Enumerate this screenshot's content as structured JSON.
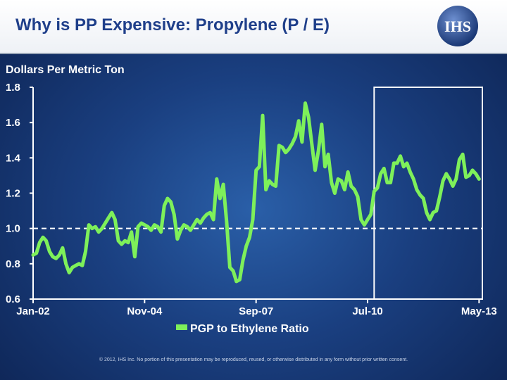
{
  "header": {
    "title": "Why is PP Expensive:  Propylene (P / E)",
    "logo_text": "IHS"
  },
  "footer": {
    "copyright": "© 2012, IHS Inc. No portion of this presentation may be reproduced, reused, or otherwise distributed in any form without prior written consent."
  },
  "colors": {
    "series": "#7ef05a",
    "axis": "#ffffff",
    "background": "#1f4d96"
  },
  "chart_data": {
    "type": "line",
    "title": "Why is PP Expensive:  Propylene (P / E)",
    "ylabel": "Dollars Per Metric Ton",
    "xlabel": "",
    "ylim": [
      0.6,
      1.8
    ],
    "yticks": [
      0.6,
      0.8,
      1.0,
      1.2,
      1.4,
      1.6,
      1.8
    ],
    "ytick_labels": [
      "0.6",
      "0.8",
      "1.0",
      "1.2",
      "1.4",
      "1.6",
      "1.8"
    ],
    "xlim": [
      0,
      137
    ],
    "xticks": [
      0,
      34,
      68,
      102,
      136
    ],
    "xtick_labels": [
      "Jan-02",
      "Nov-04",
      "Sep-07",
      "Jul-10",
      "May-13"
    ],
    "reference_line": 1.0,
    "forecast_start_index": 104,
    "legend": "PGP to Ethylene Ratio",
    "series": [
      {
        "name": "PGP to Ethylene Ratio",
        "values": [
          0.85,
          0.86,
          0.92,
          0.95,
          0.93,
          0.87,
          0.84,
          0.83,
          0.85,
          0.89,
          0.8,
          0.75,
          0.78,
          0.79,
          0.8,
          0.79,
          0.87,
          1.02,
          1.0,
          1.01,
          0.98,
          1.0,
          1.03,
          1.06,
          1.09,
          1.05,
          0.93,
          0.91,
          0.93,
          0.92,
          0.98,
          0.84,
          1.01,
          1.03,
          1.02,
          1.01,
          0.99,
          1.02,
          1.01,
          0.98,
          1.13,
          1.17,
          1.15,
          1.08,
          0.94,
          0.99,
          1.02,
          1.01,
          0.99,
          1.02,
          1.05,
          1.03,
          1.06,
          1.08,
          1.09,
          1.05,
          1.28,
          1.17,
          1.25,
          1.04,
          0.78,
          0.76,
          0.7,
          0.71,
          0.82,
          0.9,
          0.95,
          1.05,
          1.33,
          1.35,
          1.64,
          1.22,
          1.27,
          1.25,
          1.24,
          1.47,
          1.46,
          1.43,
          1.45,
          1.48,
          1.52,
          1.61,
          1.49,
          1.71,
          1.63,
          1.48,
          1.33,
          1.44,
          1.59,
          1.35,
          1.42,
          1.26,
          1.2,
          1.28,
          1.27,
          1.22,
          1.32,
          1.24,
          1.22,
          1.18,
          1.05,
          1.02,
          1.05,
          1.08,
          1.21,
          1.23,
          1.31,
          1.34,
          1.26,
          1.26,
          1.37,
          1.37,
          1.41,
          1.35,
          1.37,
          1.32,
          1.28,
          1.22,
          1.19,
          1.17,
          1.09,
          1.05,
          1.09,
          1.1,
          1.18,
          1.27,
          1.31,
          1.28,
          1.24,
          1.28,
          1.39,
          1.42,
          1.29,
          1.3,
          1.33,
          1.31,
          1.28
        ]
      }
    ]
  }
}
